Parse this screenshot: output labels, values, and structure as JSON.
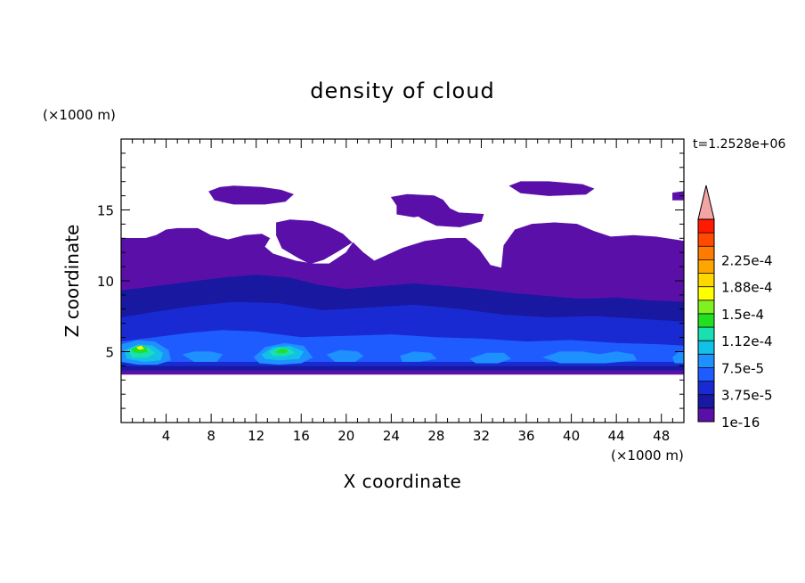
{
  "chart_data": {
    "type": "heatmap",
    "title": "density of cloud",
    "xlabel": "X coordinate",
    "ylabel": "Z coordinate",
    "x_unit_label": "(×1000 m)",
    "y_unit_label": "(×1000 m)",
    "timestamp": "t=1.2528e+06",
    "xlim": [
      0,
      50
    ],
    "ylim": [
      0,
      20
    ],
    "xticks": [
      "4",
      "8",
      "12",
      "16",
      "20",
      "24",
      "28",
      "32",
      "36",
      "40",
      "44",
      "48"
    ],
    "yticks": [
      "5",
      "10",
      "15"
    ],
    "colorbar": {
      "min": 1e-16,
      "max": 0.00025,
      "labels": [
        "1e-16",
        "3.75e-5",
        "7.5e-5",
        "1.12e-4",
        "1.5e-4",
        "1.88e-4",
        "2.25e-4"
      ],
      "colors": [
        "#5a10a8",
        "#1818a0",
        "#1a2ad2",
        "#1f5cff",
        "#1e90ff",
        "#12c0e8",
        "#18e0b0",
        "#22e020",
        "#80f020",
        "#ffff00",
        "#ffd700",
        "#ffa500",
        "#ff7a00",
        "#ff4a00",
        "#ff1a00"
      ],
      "over_color": "#f4a4a4"
    },
    "regions": [
      {
        "level": 0,
        "polygon": [
          [
            0,
            13.0
          ],
          [
            2.2,
            13.0
          ],
          [
            3.1,
            13.2
          ],
          [
            4.0,
            13.6
          ],
          [
            5.0,
            13.7
          ],
          [
            6.8,
            13.7
          ],
          [
            8.0,
            13.2
          ],
          [
            9.5,
            12.9
          ],
          [
            11.0,
            13.2
          ],
          [
            12.5,
            13.3
          ],
          [
            13.2,
            13.0
          ],
          [
            12.6,
            12.2
          ],
          [
            12.0,
            11.2
          ],
          [
            10.8,
            10.8
          ],
          [
            9.5,
            10.4
          ],
          [
            8.0,
            10.0
          ],
          [
            6.0,
            9.6
          ],
          [
            4.2,
            9.1
          ],
          [
            2.6,
            9.0
          ],
          [
            2.0,
            8.1
          ],
          [
            1.2,
            7.7
          ],
          [
            0,
            7.6
          ]
        ]
      },
      {
        "level": 0,
        "polygon": [
          [
            13.8,
            14.1
          ],
          [
            15.0,
            14.3
          ],
          [
            17.0,
            14.2
          ],
          [
            18.5,
            13.8
          ],
          [
            19.7,
            13.3
          ],
          [
            20.5,
            12.7
          ],
          [
            19.3,
            12.1
          ],
          [
            18.0,
            11.5
          ],
          [
            16.8,
            11.2
          ],
          [
            15.8,
            11.6
          ],
          [
            14.3,
            12.3
          ],
          [
            13.8,
            13.2
          ]
        ]
      },
      {
        "level": 0,
        "polygon": [
          [
            0,
            12.9
          ],
          [
            12.0,
            12.9
          ],
          [
            13.5,
            11.9
          ],
          [
            15.5,
            11.4
          ],
          [
            17.0,
            11.2
          ],
          [
            18.5,
            11.2
          ],
          [
            20.0,
            12.0
          ],
          [
            20.6,
            12.7
          ],
          [
            21.5,
            12.0
          ],
          [
            22.5,
            11.4
          ],
          [
            23.6,
            11.8
          ],
          [
            25.0,
            12.3
          ],
          [
            27.0,
            12.8
          ],
          [
            29.0,
            13.0
          ],
          [
            30.6,
            13.0
          ],
          [
            31.8,
            12.2
          ],
          [
            32.8,
            11.1
          ],
          [
            33.8,
            10.9
          ],
          [
            34.0,
            12.5
          ],
          [
            35.0,
            13.6
          ],
          [
            36.5,
            14.0
          ],
          [
            38.5,
            14.1
          ],
          [
            40.5,
            14.0
          ],
          [
            42.0,
            13.5
          ],
          [
            43.5,
            13.1
          ],
          [
            45.5,
            13.2
          ],
          [
            47.5,
            13.1
          ],
          [
            50,
            12.8
          ],
          [
            50,
            3.4
          ],
          [
            0,
            3.4
          ]
        ]
      },
      {
        "level": 0,
        "polygon": [
          [
            7.8,
            16.3
          ],
          [
            8.8,
            16.6
          ],
          [
            10.0,
            16.7
          ],
          [
            12.5,
            16.6
          ],
          [
            14.2,
            16.4
          ],
          [
            15.3,
            16.1
          ],
          [
            14.6,
            15.6
          ],
          [
            12.8,
            15.4
          ],
          [
            10.0,
            15.4
          ],
          [
            8.3,
            15.7
          ]
        ]
      },
      {
        "level": 0,
        "polygon": [
          [
            24.0,
            15.9
          ],
          [
            25.4,
            16.1
          ],
          [
            27.8,
            16.0
          ],
          [
            28.6,
            15.7
          ],
          [
            29.2,
            15.1
          ],
          [
            30.0,
            14.8
          ],
          [
            32.2,
            14.7
          ],
          [
            32.0,
            14.2
          ],
          [
            30.1,
            13.8
          ],
          [
            28.0,
            13.9
          ],
          [
            26.7,
            14.4
          ],
          [
            25.6,
            15.0
          ],
          [
            24.6,
            15.2
          ]
        ]
      },
      {
        "level": 0,
        "polygon": [
          [
            24.5,
            15.3
          ],
          [
            25.8,
            15.4
          ],
          [
            27.3,
            15.2
          ],
          [
            27.5,
            14.7
          ],
          [
            26.0,
            14.5
          ],
          [
            24.5,
            14.7
          ]
        ]
      },
      {
        "level": 0,
        "polygon": [
          [
            34.5,
            16.7
          ],
          [
            35.5,
            17.0
          ],
          [
            38.0,
            17.0
          ],
          [
            41.0,
            16.8
          ],
          [
            42.0,
            16.5
          ],
          [
            41.3,
            16.1
          ],
          [
            38.0,
            16.0
          ],
          [
            35.5,
            16.2
          ]
        ]
      },
      {
        "level": 0,
        "polygon": [
          [
            49.0,
            16.2
          ],
          [
            50,
            16.3
          ],
          [
            50,
            15.7
          ],
          [
            49.0,
            15.7
          ]
        ]
      },
      {
        "level": 1,
        "polygon": [
          [
            0,
            9.3
          ],
          [
            3.0,
            9.6
          ],
          [
            6.0,
            9.9
          ],
          [
            9.0,
            10.2
          ],
          [
            12.0,
            10.4
          ],
          [
            15.0,
            10.2
          ],
          [
            17.5,
            9.7
          ],
          [
            20.0,
            9.4
          ],
          [
            23.0,
            9.6
          ],
          [
            26.0,
            9.8
          ],
          [
            29.0,
            9.6
          ],
          [
            32.0,
            9.4
          ],
          [
            35.0,
            9.1
          ],
          [
            38.0,
            8.9
          ],
          [
            41.0,
            8.7
          ],
          [
            44.0,
            8.8
          ],
          [
            47.0,
            8.6
          ],
          [
            50,
            8.5
          ],
          [
            50,
            3.7
          ],
          [
            0,
            3.7
          ]
        ]
      },
      {
        "level": 2,
        "polygon": [
          [
            0,
            7.4
          ],
          [
            3.0,
            7.8
          ],
          [
            6.5,
            8.2
          ],
          [
            10.0,
            8.5
          ],
          [
            14.0,
            8.4
          ],
          [
            18.0,
            7.9
          ],
          [
            22.0,
            8.1
          ],
          [
            26.0,
            8.3
          ],
          [
            30.0,
            8.0
          ],
          [
            34.0,
            7.6
          ],
          [
            38.0,
            7.4
          ],
          [
            42.0,
            7.5
          ],
          [
            46.0,
            7.3
          ],
          [
            50,
            7.1
          ],
          [
            50,
            4.0
          ],
          [
            0,
            4.0
          ]
        ]
      },
      {
        "level": 3,
        "polygon": [
          [
            0,
            5.7
          ],
          [
            3.0,
            6.0
          ],
          [
            6.0,
            6.3
          ],
          [
            9.0,
            6.5
          ],
          [
            12.0,
            6.4
          ],
          [
            16.0,
            6.0
          ],
          [
            20.0,
            6.1
          ],
          [
            24.0,
            6.2
          ],
          [
            28.0,
            6.0
          ],
          [
            32.0,
            5.9
          ],
          [
            36.0,
            5.7
          ],
          [
            40.0,
            5.8
          ],
          [
            44.0,
            5.6
          ],
          [
            48.0,
            5.5
          ],
          [
            50,
            5.4
          ],
          [
            50,
            4.3
          ],
          [
            0,
            4.3
          ]
        ]
      },
      {
        "level": 4,
        "polygon": [
          [
            0,
            5.5
          ],
          [
            1.5,
            5.8
          ],
          [
            3.0,
            5.7
          ],
          [
            4.2,
            5.1
          ],
          [
            4.4,
            4.4
          ],
          [
            3.2,
            4.1
          ],
          [
            1.5,
            4.1
          ],
          [
            0,
            4.3
          ]
        ]
      },
      {
        "level": 4,
        "polygon": [
          [
            11.8,
            4.6
          ],
          [
            12.8,
            5.3
          ],
          [
            14.5,
            5.6
          ],
          [
            16.2,
            5.4
          ],
          [
            17.0,
            4.6
          ],
          [
            16.0,
            4.2
          ],
          [
            14.0,
            4.1
          ],
          [
            12.3,
            4.2
          ]
        ]
      },
      {
        "level": 4,
        "polygon": [
          [
            5.5,
            4.8
          ],
          [
            6.5,
            5.0
          ],
          [
            8.0,
            5.0
          ],
          [
            9.0,
            4.8
          ],
          [
            8.5,
            4.3
          ],
          [
            6.5,
            4.3
          ]
        ]
      },
      {
        "level": 4,
        "polygon": [
          [
            18.3,
            4.8
          ],
          [
            19.5,
            5.1
          ],
          [
            21.0,
            5.0
          ],
          [
            21.5,
            4.7
          ],
          [
            20.8,
            4.3
          ],
          [
            19.0,
            4.3
          ]
        ]
      },
      {
        "level": 4,
        "polygon": [
          [
            24.8,
            4.7
          ],
          [
            26.0,
            5.0
          ],
          [
            27.5,
            4.9
          ],
          [
            28.0,
            4.5
          ],
          [
            26.5,
            4.3
          ],
          [
            25.0,
            4.3
          ]
        ]
      },
      {
        "level": 4,
        "polygon": [
          [
            31.0,
            4.5
          ],
          [
            32.5,
            4.9
          ],
          [
            34.0,
            4.9
          ],
          [
            34.6,
            4.5
          ],
          [
            33.5,
            4.2
          ],
          [
            31.5,
            4.2
          ]
        ]
      },
      {
        "level": 4,
        "polygon": [
          [
            37.5,
            4.6
          ],
          [
            39.0,
            5.0
          ],
          [
            41.0,
            5.0
          ],
          [
            42.5,
            4.8
          ],
          [
            44.0,
            5.0
          ],
          [
            45.5,
            4.8
          ],
          [
            45.8,
            4.4
          ],
          [
            43.0,
            4.2
          ],
          [
            39.0,
            4.2
          ]
        ]
      },
      {
        "level": 4,
        "polygon": [
          [
            49.0,
            4.6
          ],
          [
            49.6,
            5.0
          ],
          [
            50,
            5.0
          ],
          [
            50,
            4.2
          ],
          [
            49.2,
            4.2
          ]
        ]
      },
      {
        "level": 5,
        "polygon": [
          [
            0.3,
            5.1
          ],
          [
            1.5,
            5.5
          ],
          [
            2.8,
            5.4
          ],
          [
            3.7,
            4.9
          ],
          [
            3.5,
            4.4
          ],
          [
            2.0,
            4.3
          ],
          [
            0.5,
            4.5
          ]
        ]
      },
      {
        "level": 5,
        "polygon": [
          [
            12.5,
            4.8
          ],
          [
            13.5,
            5.3
          ],
          [
            15.0,
            5.4
          ],
          [
            16.2,
            5.0
          ],
          [
            15.8,
            4.5
          ],
          [
            14.0,
            4.4
          ],
          [
            12.8,
            4.5
          ]
        ]
      },
      {
        "level": 6,
        "polygon": [
          [
            0.6,
            5.1
          ],
          [
            1.4,
            5.4
          ],
          [
            2.4,
            5.3
          ],
          [
            3.0,
            4.9
          ],
          [
            2.3,
            4.6
          ],
          [
            1.0,
            4.6
          ]
        ]
      },
      {
        "level": 6,
        "polygon": [
          [
            13.2,
            5.0
          ],
          [
            14.0,
            5.3
          ],
          [
            15.0,
            5.2
          ],
          [
            15.4,
            4.9
          ],
          [
            14.5,
            4.7
          ],
          [
            13.5,
            4.7
          ]
        ]
      },
      {
        "level": 7,
        "polygon": [
          [
            1.0,
            5.2
          ],
          [
            1.6,
            5.4
          ],
          [
            2.2,
            5.3
          ],
          [
            2.3,
            5.0
          ],
          [
            1.6,
            4.9
          ],
          [
            1.1,
            5.0
          ]
        ]
      },
      {
        "level": 7,
        "polygon": [
          [
            13.8,
            5.0
          ],
          [
            14.3,
            5.2
          ],
          [
            14.8,
            5.1
          ],
          [
            14.6,
            4.9
          ],
          [
            14.0,
            4.9
          ]
        ]
      },
      {
        "level": 9,
        "polygon": [
          [
            1.4,
            5.3
          ],
          [
            1.8,
            5.4
          ],
          [
            2.0,
            5.2
          ],
          [
            1.6,
            5.15
          ]
        ]
      }
    ]
  }
}
